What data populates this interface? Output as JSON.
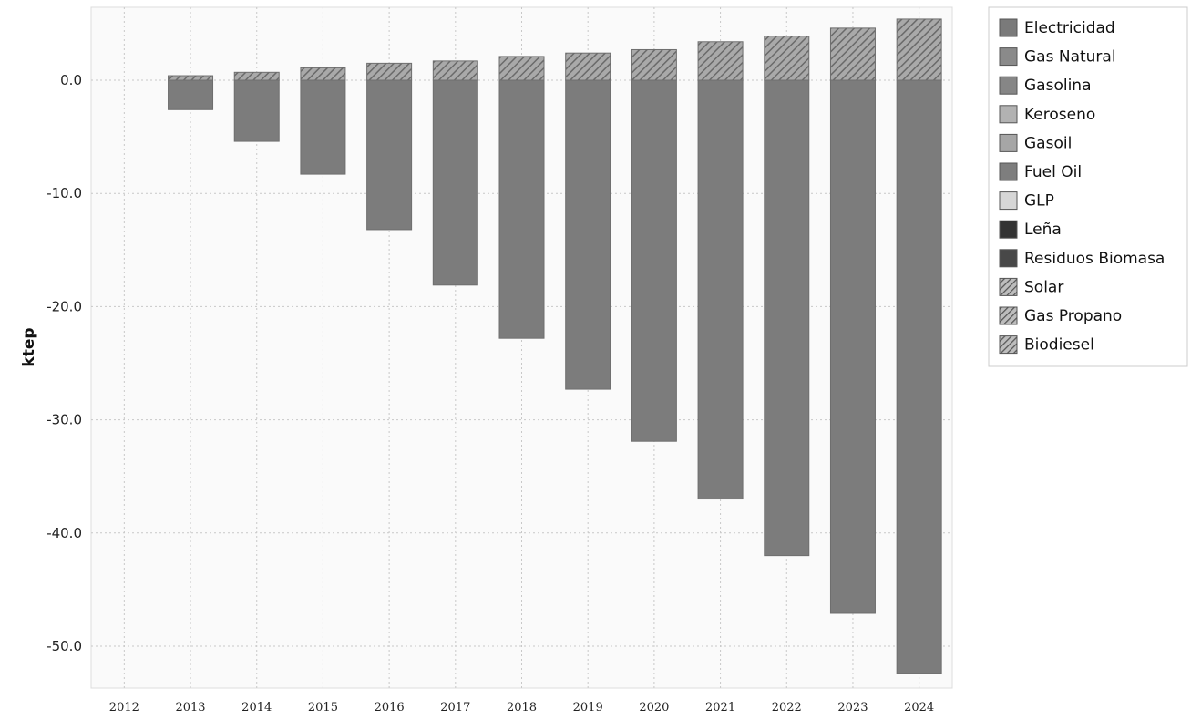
{
  "chart_data": {
    "type": "bar",
    "stacked": true,
    "ylabel": "ktep",
    "xlabel": "",
    "title": "",
    "categories": [
      "2012",
      "2013",
      "2014",
      "2015",
      "2016",
      "2017",
      "2018",
      "2019",
      "2020",
      "2021",
      "2022",
      "2023",
      "2024"
    ],
    "ylim": [
      -54,
      6.5
    ],
    "yticks": [
      0,
      -10,
      -20,
      -30,
      -40,
      -50
    ],
    "ytick_labels": [
      "0.0",
      "-10.0",
      "-20.0",
      "-30.0",
      "-40.0",
      "-50.0"
    ],
    "grid": true,
    "legend_position": "right",
    "legend": [
      {
        "name": "Electricidad",
        "color": "#7a7a7a",
        "pattern": "solid"
      },
      {
        "name": "Gas Natural",
        "color": "#8a8a8a",
        "pattern": "solid"
      },
      {
        "name": "Gasolina",
        "color": "#868686",
        "pattern": "solid"
      },
      {
        "name": "Keroseno",
        "color": "#b2b2b2",
        "pattern": "solid"
      },
      {
        "name": "Gasoil",
        "color": "#a6a6a6",
        "pattern": "solid"
      },
      {
        "name": "Fuel Oil",
        "color": "#7e7e7e",
        "pattern": "solid"
      },
      {
        "name": "GLP",
        "color": "#d6d6d6",
        "pattern": "solid"
      },
      {
        "name": "Leña",
        "color": "#333333",
        "pattern": "solid"
      },
      {
        "name": "Residuos Biomasa",
        "color": "#484848",
        "pattern": "solid"
      },
      {
        "name": "Solar",
        "color": "#888888",
        "pattern": "hatch"
      },
      {
        "name": "Gas Propano",
        "color": "#666666",
        "pattern": "hatch"
      },
      {
        "name": "Biodiesel",
        "color": "#999999",
        "pattern": "hatch"
      }
    ],
    "series": [
      {
        "name": "Electricidad",
        "values": [
          0,
          -2.6,
          -5.4,
          -8.3,
          -13.2,
          -18.1,
          -22.8,
          -27.3,
          -31.9,
          -37.0,
          -42.0,
          -47.1,
          -52.4
        ]
      },
      {
        "name": "Solar",
        "values": [
          0,
          0.4,
          0.7,
          1.1,
          1.5,
          1.7,
          2.1,
          2.4,
          2.7,
          3.4,
          3.9,
          4.6,
          5.4
        ]
      }
    ]
  }
}
